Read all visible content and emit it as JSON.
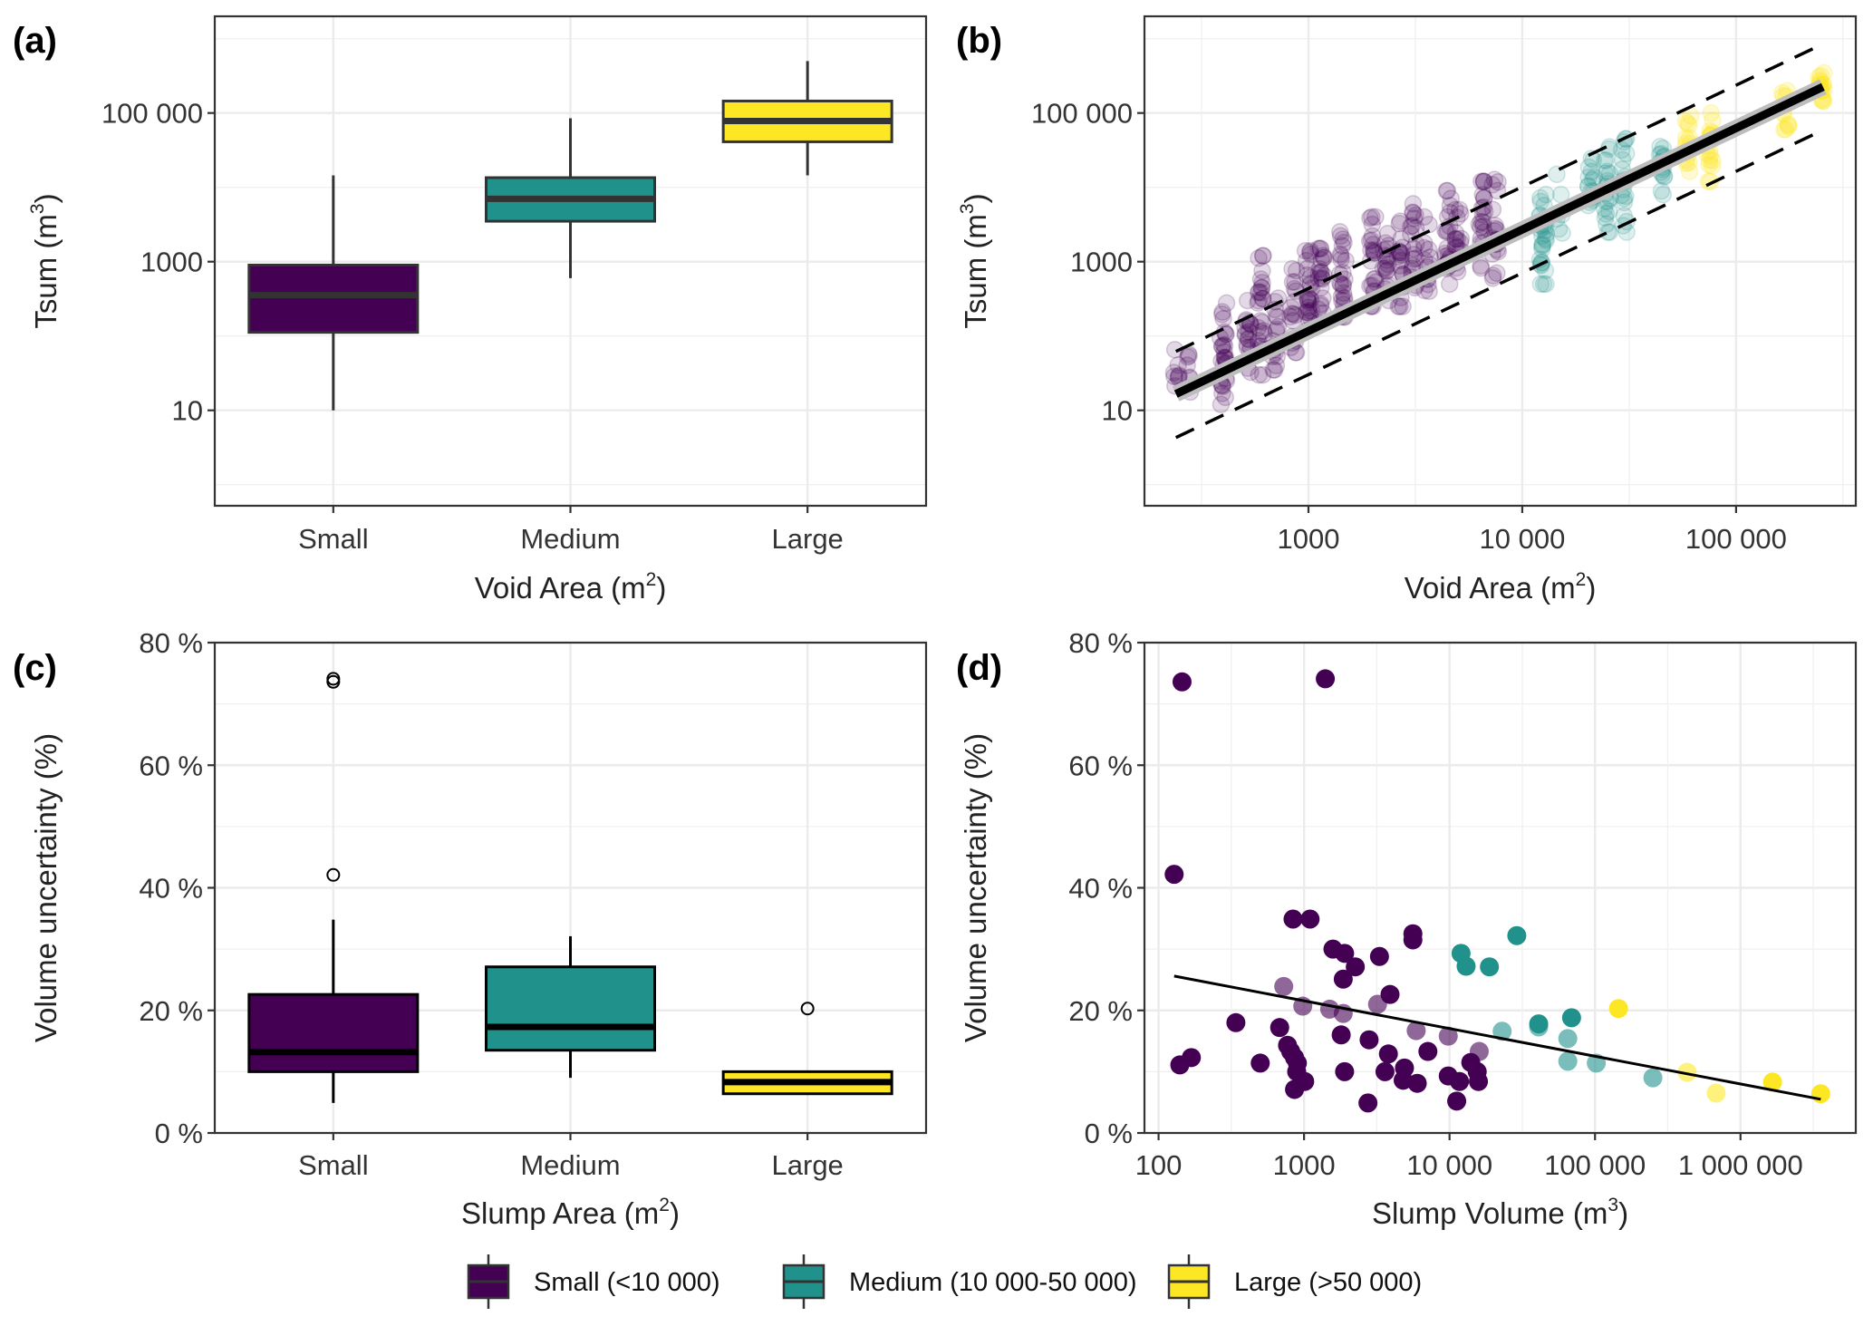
{
  "figure": {
    "legend": {
      "items": [
        {
          "label": "Small (<10 000)",
          "color": "#440154"
        },
        {
          "label": "Medium (10 000-50 000)",
          "color": "#21918c"
        },
        {
          "label": "Large (>50 000)",
          "color": "#fde725"
        }
      ],
      "placement": "bottom-center"
    }
  },
  "chart_data": [
    {
      "panel": "(a)",
      "type": "box",
      "xlabel": "Void Area",
      "xlabel_unit": "m",
      "xlabel_exp": "2",
      "ylabel": "Tsum",
      "ylabel_unit": "m",
      "ylabel_exp": "3",
      "yscale": "log10",
      "ylim": [
        0.52,
        2000000
      ],
      "yticks": [
        10,
        1000,
        100000
      ],
      "ytick_labels": [
        "10",
        "1000",
        "100 000"
      ],
      "categories": [
        "Small",
        "Medium",
        "Large"
      ],
      "colors": [
        "#440154",
        "#21918c",
        "#fde725"
      ],
      "boxes": [
        {
          "min": 10,
          "q1": 112,
          "median": 355,
          "q3": 900,
          "max": 14500,
          "outliers": []
        },
        {
          "min": 600,
          "q1": 3500,
          "median": 7000,
          "q3": 13500,
          "max": 85000,
          "outliers": []
        },
        {
          "min": 14500,
          "q1": 41000,
          "median": 78000,
          "q3": 145000,
          "max": 500000,
          "outliers": []
        }
      ],
      "grid": true
    },
    {
      "panel": "(b)",
      "type": "scatter",
      "xlabel": "Void Area",
      "xlabel_unit": "m",
      "xlabel_exp": "2",
      "ylabel": "Tsum",
      "ylabel_unit": "m",
      "ylabel_exp": "3",
      "xscale": "log10",
      "yscale": "log10",
      "xlim": [
        171,
        363000
      ],
      "ylim": [
        0.52,
        2000000
      ],
      "xticks": [
        1000,
        10000,
        100000
      ],
      "xtick_labels": [
        "1000",
        "10 000",
        "100 000"
      ],
      "yticks": [
        10,
        1000,
        100000
      ],
      "ytick_labels": [
        "10",
        "1000",
        "100 000"
      ],
      "series": [
        {
          "name": "Small (<10 000)",
          "color": "#440154",
          "alpha": 0.15,
          "clusters": [
            {
              "x": 240,
              "ylo": 10,
              "yhi": 70,
              "n": 8
            },
            {
              "x": 280,
              "ylo": 15,
              "yhi": 65,
              "n": 7
            },
            {
              "x": 400,
              "ylo": 12,
              "yhi": 280,
              "n": 30
            },
            {
              "x": 520,
              "ylo": 25,
              "yhi": 300,
              "n": 18
            },
            {
              "x": 600,
              "ylo": 30,
              "yhi": 1200,
              "n": 28
            },
            {
              "x": 700,
              "ylo": 35,
              "yhi": 500,
              "n": 18
            },
            {
              "x": 850,
              "ylo": 60,
              "yhi": 800,
              "n": 20
            },
            {
              "x": 1000,
              "ylo": 80,
              "yhi": 1400,
              "n": 26
            },
            {
              "x": 1150,
              "ylo": 150,
              "yhi": 1500,
              "n": 22
            },
            {
              "x": 1450,
              "ylo": 180,
              "yhi": 3500,
              "n": 26
            },
            {
              "x": 2000,
              "ylo": 250,
              "yhi": 4000,
              "n": 24
            },
            {
              "x": 2300,
              "ylo": 300,
              "yhi": 3000,
              "n": 18
            },
            {
              "x": 2700,
              "ylo": 250,
              "yhi": 3500,
              "n": 20
            },
            {
              "x": 3100,
              "ylo": 400,
              "yhi": 6000,
              "n": 20
            },
            {
              "x": 3600,
              "ylo": 400,
              "yhi": 4000,
              "n": 14
            },
            {
              "x": 4500,
              "ylo": 500,
              "yhi": 9000,
              "n": 24
            },
            {
              "x": 5000,
              "ylo": 600,
              "yhi": 5000,
              "n": 18
            },
            {
              "x": 6500,
              "ylo": 700,
              "yhi": 12000,
              "n": 22
            },
            {
              "x": 7500,
              "ylo": 600,
              "yhi": 15000,
              "n": 22
            }
          ]
        },
        {
          "name": "Medium (10 000-50 000)",
          "color": "#21918c",
          "alpha": 0.15,
          "clusters": [
            {
              "x": 12500,
              "ylo": 500,
              "yhi": 8000,
              "n": 30
            },
            {
              "x": 15000,
              "ylo": 2000,
              "yhi": 16000,
              "n": 6
            },
            {
              "x": 21000,
              "ylo": 3000,
              "yhi": 28000,
              "n": 16
            },
            {
              "x": 25000,
              "ylo": 2500,
              "yhi": 35000,
              "n": 22
            },
            {
              "x": 30000,
              "ylo": 2500,
              "yhi": 45000,
              "n": 20
            },
            {
              "x": 45000,
              "ylo": 8000,
              "yhi": 50000,
              "n": 16
            }
          ]
        },
        {
          "name": "Large (>50 000)",
          "color": "#fde725",
          "alpha": 0.2,
          "clusters": [
            {
              "x": 60000,
              "ylo": 15000,
              "yhi": 120000,
              "n": 16
            },
            {
              "x": 75000,
              "ylo": 12000,
              "yhi": 100000,
              "n": 18
            },
            {
              "x": 170000,
              "ylo": 60000,
              "yhi": 200000,
              "n": 12
            },
            {
              "x": 250000,
              "ylo": 120000,
              "yhi": 350000,
              "n": 18
            }
          ]
        }
      ],
      "fit_line": {
        "x": [
          240,
          255000
        ],
        "y": [
          16.6,
          225000
        ],
        "color": "#000000",
        "ci_color": "#bdbdbd"
      },
      "prediction_upper": {
        "x": [
          240,
          255000
        ],
        "y": [
          62,
          850000
        ]
      },
      "prediction_lower": {
        "x": [
          240,
          255000
        ],
        "y": [
          4.3,
          59000
        ]
      },
      "grid": true
    },
    {
      "panel": "(c)",
      "type": "box",
      "xlabel": "Slump Area",
      "xlabel_unit": "m",
      "xlabel_exp": "2",
      "ylabel": "Volume uncertainty (%)",
      "ylim": [
        0,
        80
      ],
      "yticks": [
        0,
        20,
        40,
        60,
        80
      ],
      "ytick_labels": [
        "0 %",
        "20 %",
        "40 %",
        "60 %",
        "80 %"
      ],
      "categories": [
        "Small",
        "Medium",
        "Large"
      ],
      "colors": [
        "#440154",
        "#21918c",
        "#fde725"
      ],
      "boxes": [
        {
          "min": 4.9,
          "q1": 10.0,
          "median": 13.2,
          "q3": 22.6,
          "max": 34.8,
          "outliers": [
            42.1,
            73.6,
            74.1
          ]
        },
        {
          "min": 9.0,
          "q1": 13.5,
          "median": 17.3,
          "q3": 27.1,
          "max": 32.1,
          "outliers": []
        },
        {
          "min": 6.4,
          "q1": 6.4,
          "median": 8.3,
          "q3": 10.0,
          "max": 10.0,
          "outliers": [
            20.3
          ]
        }
      ],
      "grid": true
    },
    {
      "panel": "(d)",
      "type": "scatter",
      "xlabel": "Slump Volume",
      "xlabel_unit": "m",
      "xlabel_exp": "3",
      "ylabel": "Volume uncertainty (%)",
      "xscale": "log10",
      "xlim": [
        80,
        6200000
      ],
      "ylim": [
        0,
        80
      ],
      "xticks": [
        100,
        1000,
        10000,
        100000,
        1000000
      ],
      "xtick_labels": [
        "100",
        "1000",
        "10 000",
        "100 000",
        "1 000 000"
      ],
      "yticks": [
        0,
        20,
        40,
        60,
        80
      ],
      "ytick_labels": [
        "0 %",
        "20 %",
        "40 %",
        "60 %",
        "80 %"
      ],
      "series": [
        {
          "name": "Small (<10 000)",
          "color": "#440154",
          "points": [
            [
              145,
              73.6,
              1
            ],
            [
              1400,
              74.1,
              1
            ],
            [
              128,
              42.2,
              1
            ],
            [
              840,
              34.9,
              1
            ],
            [
              1100,
              34.9,
              1
            ],
            [
              5600,
              32.5,
              1
            ],
            [
              5600,
              31.5,
              1
            ],
            [
              1580,
              30.0,
              1
            ],
            [
              1900,
              29.3,
              1
            ],
            [
              2250,
              27.1,
              1
            ],
            [
              3300,
              28.8,
              1
            ],
            [
              1860,
              25.1,
              1
            ],
            [
              3900,
              22.6,
              1
            ],
            [
              725,
              23.9,
              0.6
            ],
            [
              980,
              20.7,
              0.6
            ],
            [
              1500,
              20.2,
              0.6
            ],
            [
              1860,
              19.5,
              0.6
            ],
            [
              3200,
              21.0,
              0.6
            ],
            [
              5900,
              16.7,
              0.6
            ],
            [
              9800,
              15.8,
              0.6
            ],
            [
              16000,
              13.3,
              0.6
            ],
            [
              340,
              18.0,
              1
            ],
            [
              680,
              17.2,
              1
            ],
            [
              1800,
              16.0,
              1
            ],
            [
              2800,
              15.2,
              1
            ],
            [
              770,
              14.3,
              1
            ],
            [
              810,
              13.3,
              1
            ],
            [
              860,
              12.3,
              1
            ],
            [
              900,
              11.4,
              1
            ],
            [
              168,
              12.3,
              1
            ],
            [
              140,
              11.1,
              1
            ],
            [
              500,
              11.4,
              1
            ],
            [
              1900,
              10.0,
              1
            ],
            [
              860,
              7.1,
              1
            ],
            [
              1010,
              8.4,
              1
            ],
            [
              890,
              10.0,
              1
            ],
            [
              2750,
              4.9,
              1
            ],
            [
              3800,
              12.9,
              1
            ],
            [
              3600,
              10.0,
              1
            ],
            [
              4900,
              10.6,
              1
            ],
            [
              4800,
              8.6,
              1
            ],
            [
              6000,
              8.1,
              1
            ],
            [
              7100,
              13.3,
              1
            ],
            [
              9800,
              9.3,
              1
            ],
            [
              11700,
              8.4,
              1
            ],
            [
              11200,
              5.2,
              1
            ],
            [
              14000,
              11.5,
              1
            ],
            [
              15500,
              10.0,
              1
            ],
            [
              15800,
              8.4,
              1
            ]
          ]
        },
        {
          "name": "Medium (10 000-50 000)",
          "color": "#21918c",
          "points": [
            [
              12000,
              29.3,
              1
            ],
            [
              13000,
              27.2,
              1
            ],
            [
              18800,
              27.1,
              1
            ],
            [
              29000,
              32.2,
              1
            ],
            [
              69000,
              18.8,
              1
            ],
            [
              41000,
              17.8,
              1
            ],
            [
              23000,
              16.6,
              0.6
            ],
            [
              41000,
              17.3,
              0.6
            ],
            [
              65000,
              15.4,
              0.6
            ],
            [
              65000,
              11.7,
              0.6
            ],
            [
              102000,
              11.4,
              0.6
            ],
            [
              250000,
              9.0,
              0.6
            ]
          ]
        },
        {
          "name": "Large (>50 000)",
          "color": "#fde725",
          "points": [
            [
              145000,
              20.3,
              1
            ],
            [
              430000,
              9.9,
              0.6
            ],
            [
              680000,
              6.5,
              0.6
            ],
            [
              1660000,
              8.3,
              1
            ],
            [
              3560000,
              6.4,
              1
            ]
          ]
        }
      ],
      "fit_line": {
        "x": [
          128,
          3560000
        ],
        "y": [
          25.6,
          5.5
        ],
        "color": "#000000"
      },
      "grid": true
    }
  ]
}
